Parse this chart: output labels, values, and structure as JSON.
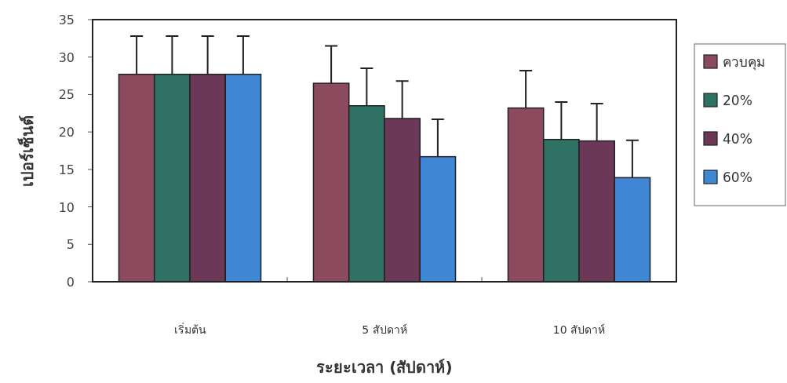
{
  "chart_data": {
    "type": "bar",
    "xlabel": "ระยะเวลา (สัปดาห์)",
    "ylabel": "เปอร์เซ็นต์",
    "categories": [
      "เริ่มต้น",
      "5 สัปดาห์",
      "10 สัปดาห์"
    ],
    "series": [
      {
        "name": "ควบคุม",
        "color": "#8b4a5e",
        "values": [
          27.7,
          26.5,
          23.2
        ],
        "errors": [
          [
            27.7,
            32.8
          ],
          [
            26.5,
            31.5
          ],
          [
            23.2,
            28.2
          ]
        ]
      },
      {
        "name": "20%",
        "color": "#2f7265",
        "values": [
          27.7,
          23.5,
          19.0
        ],
        "errors": [
          [
            27.7,
            32.8
          ],
          [
            23.5,
            28.5
          ],
          [
            19.0,
            24.0
          ]
        ]
      },
      {
        "name": "40%",
        "color": "#6b3858",
        "values": [
          27.7,
          21.8,
          18.8
        ],
        "errors": [
          [
            27.7,
            32.8
          ],
          [
            21.8,
            26.8
          ],
          [
            18.8,
            23.8
          ]
        ]
      },
      {
        "name": "60%",
        "color": "#3f86d4",
        "values": [
          27.7,
          16.7,
          13.9
        ],
        "errors": [
          [
            27.7,
            32.8
          ],
          [
            16.7,
            21.7
          ],
          [
            13.9,
            18.9
          ]
        ]
      }
    ],
    "ylim": [
      0,
      35
    ],
    "yticks": [
      0,
      5,
      10,
      15,
      20,
      25,
      30,
      35
    ],
    "legend": "right"
  }
}
